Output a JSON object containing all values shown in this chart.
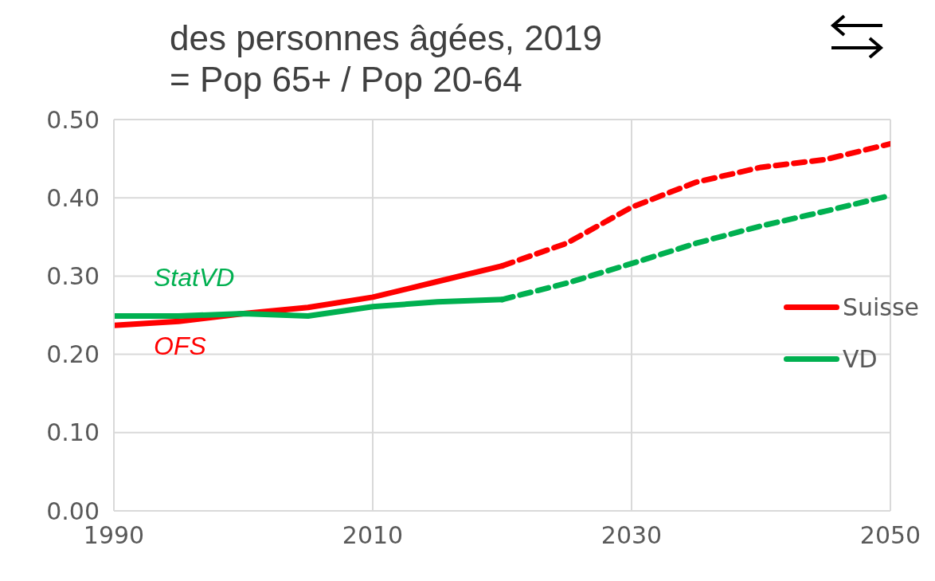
{
  "chart_data": {
    "type": "line",
    "title": "des personnes âgées, 2019\n= Pop 65+ / Pop 20-64",
    "series": [
      {
        "name": "Suisse",
        "color": "#ff0000",
        "line_style": "solid",
        "x": [
          1990,
          1995,
          2000,
          2005,
          2010,
          2015,
          2020
        ],
        "values": [
          0.237,
          0.242,
          0.252,
          0.26,
          0.273,
          0.293,
          0.313
        ]
      },
      {
        "color": "#ff0000",
        "line_style": "dashed",
        "x": [
          2020,
          2025,
          2030,
          2035,
          2040,
          2045,
          2050
        ],
        "values": [
          0.313,
          0.342,
          0.388,
          0.42,
          0.439,
          0.449,
          0.469
        ]
      },
      {
        "name": "VD",
        "color": "#00b050",
        "line_style": "solid",
        "x": [
          1990,
          1995,
          2000,
          2005,
          2010,
          2015,
          2020
        ],
        "values": [
          0.249,
          0.249,
          0.252,
          0.249,
          0.261,
          0.267,
          0.27
        ]
      },
      {
        "color": "#00b050",
        "line_style": "dashed",
        "x": [
          2020,
          2025,
          2030,
          2035,
          2040,
          2045,
          2050
        ],
        "values": [
          0.27,
          0.291,
          0.316,
          0.342,
          0.364,
          0.383,
          0.403
        ]
      }
    ],
    "annotations": [
      "StatVD",
      "OFS"
    ],
    "xlim": [
      1990,
      2050
    ],
    "xticks": [
      1990,
      2010,
      2030,
      2050
    ],
    "ylim": [
      0,
      0.5
    ],
    "yticks": [
      {
        "value": 0,
        "label": "0.00"
      },
      {
        "value": 0.1,
        "label": "0.10"
      },
      {
        "value": 0.2,
        "label": "0.20"
      },
      {
        "value": 0.3,
        "label": "0.30"
      },
      {
        "value": 0.4,
        "label": "0.40"
      },
      {
        "value": 0.5,
        "label": "0.50"
      }
    ],
    "grid": true,
    "legend": "right",
    "marker": "none"
  }
}
